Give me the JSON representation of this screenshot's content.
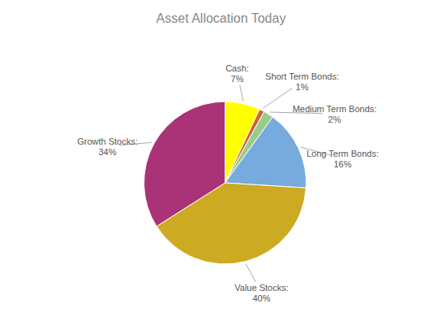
{
  "chart_data": {
    "type": "pie",
    "title": "Asset Allocation Today",
    "categories": [
      "Cash:",
      "Short Term Bonds:",
      "Medium Term Bonds:",
      "Long Term Bonds:",
      "Value Stocks:",
      "Growth Stocks:"
    ],
    "values": [
      7,
      1,
      2,
      16,
      40,
      34
    ],
    "value_labels": [
      "7%",
      "1%",
      "2%",
      "16%",
      "40%",
      "34%"
    ],
    "colors": [
      "#ffff00",
      "#cc6633",
      "#99cc88",
      "#77aadd",
      "#ccaa22",
      "#aa3377"
    ],
    "data_labels": true
  }
}
